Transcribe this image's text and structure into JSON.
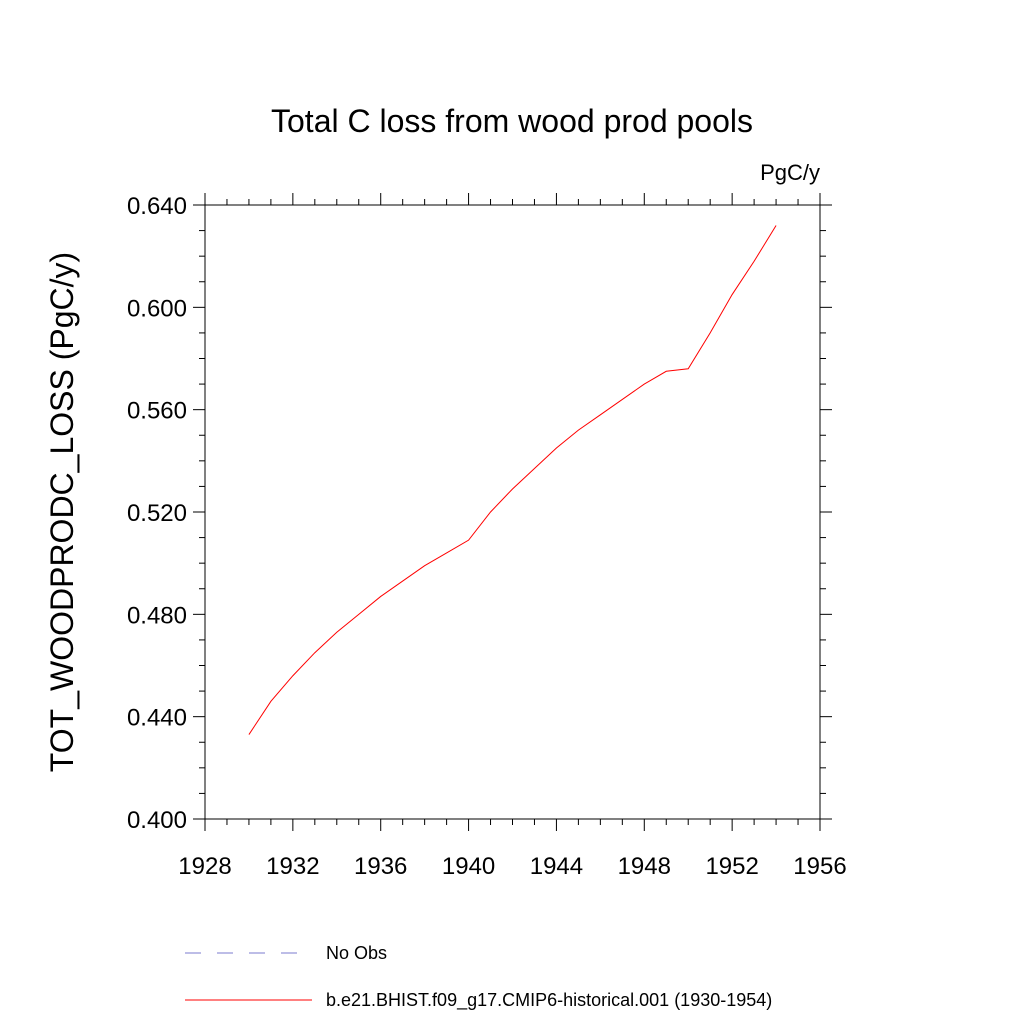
{
  "chart_data": {
    "type": "line",
    "title": "Total C loss from wood prod pools",
    "units_label": "PgC/y",
    "ylabel": "TOT_WOODPRODC_LOSS  (PgC/y)",
    "xlabel": "",
    "xlim": [
      1928,
      1956
    ],
    "ylim": [
      0.4,
      0.64
    ],
    "x_ticks": [
      1928,
      1932,
      1936,
      1940,
      1944,
      1948,
      1952,
      1956
    ],
    "x_tick_labels": [
      "1928",
      "1932",
      "1936",
      "1940",
      "1944",
      "1948",
      "1952",
      "1956"
    ],
    "y_ticks": [
      0.4,
      0.44,
      0.48,
      0.52,
      0.56,
      0.6,
      0.64
    ],
    "y_tick_labels": [
      "0.400",
      "0.440",
      "0.480",
      "0.520",
      "0.560",
      "0.600",
      "0.640"
    ],
    "grid": false,
    "legend_position": "bottom",
    "series": [
      {
        "name": "b.e21.BHIST.f09_g17.CMIP6-historical.001 (1930-1954)",
        "color": "#ff0000",
        "x": [
          1930,
          1931,
          1932,
          1933,
          1934,
          1935,
          1936,
          1937,
          1938,
          1939,
          1940,
          1941,
          1942,
          1943,
          1944,
          1945,
          1946,
          1947,
          1948,
          1949,
          1950,
          1951,
          1952,
          1953,
          1954
        ],
        "y": [
          0.433,
          0.446,
          0.456,
          0.465,
          0.473,
          0.48,
          0.487,
          0.493,
          0.499,
          0.504,
          0.509,
          0.52,
          0.529,
          0.537,
          0.545,
          0.552,
          0.558,
          0.564,
          0.57,
          0.575,
          0.576,
          0.59,
          0.605,
          0.618,
          0.632
        ]
      }
    ],
    "legend": [
      {
        "label": "No Obs",
        "color": "#7b7bcf",
        "style": "dashed"
      },
      {
        "label": "b.e21.BHIST.f09_g17.CMIP6-historical.001 (1930-1954)",
        "color": "#ff0000",
        "style": "solid"
      }
    ]
  }
}
